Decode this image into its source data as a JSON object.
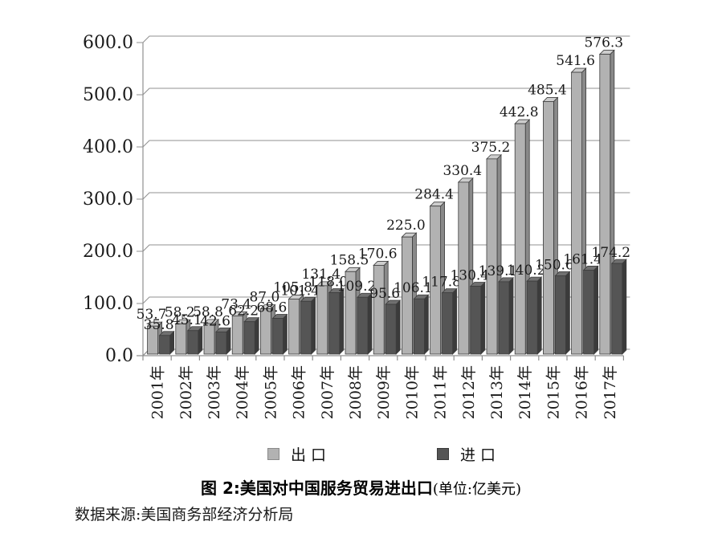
{
  "page": {
    "caption": {
      "main": "图 2:美国对中国服务贸易进出口",
      "unit": "(单位:亿美元)"
    },
    "source": "数据来源:美国商务部经济分析局"
  },
  "chart_data": {
    "type": "bar",
    "style": "3d-clustered-column",
    "title": "图 2:美国对中国服务贸易进出口(单位:亿美元)",
    "xlabel": "",
    "ylabel": "",
    "unit": "亿美元",
    "categories": [
      "2001年",
      "2002年",
      "2003年",
      "2004年",
      "2005年",
      "2006年",
      "2007年",
      "2008年",
      "2009年",
      "2010年",
      "2011年",
      "2012年",
      "2013年",
      "2014年",
      "2015年",
      "2016年",
      "2017年"
    ],
    "series": [
      {
        "name": "出口",
        "color": "#b2b2b2",
        "values": [
          53.7,
          58.2,
          58.8,
          73.4,
          87.0,
          105.8,
          131.4,
          158.5,
          170.6,
          225.0,
          284.4,
          330.4,
          375.2,
          442.8,
          485.4,
          541.6,
          576.3
        ]
      },
      {
        "name": "进口",
        "color": "#555555",
        "values": [
          35.8,
          45.1,
          42.6,
          62.2,
          68.6,
          101.4,
          118.0,
          109.2,
          95.6,
          106.1,
          117.8,
          130.4,
          139.1,
          140.2,
          150.6,
          161.4,
          174.2
        ]
      }
    ],
    "ylim": [
      0,
      600
    ],
    "y_step": 100,
    "y_tick_labels": [
      "0.0",
      "100.0",
      "200.0",
      "300.0",
      "400.0",
      "500.0",
      "600.0"
    ],
    "grid": true,
    "value_labels": true,
    "legend_position": "bottom",
    "colors": {
      "grid": "#919191",
      "axis": "#8f8f8f",
      "text": "#1a1a1a",
      "export_top": "#cdcdcd",
      "export_side": "#898989",
      "import_top": "#707070",
      "import_side": "#3b3b3b"
    }
  }
}
